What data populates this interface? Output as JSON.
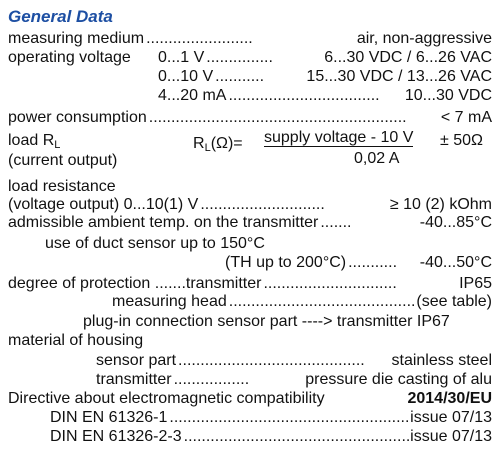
{
  "title": "General Data",
  "rows": [
    {
      "label": "measuring medium",
      "leader": "........................",
      "value": "air, non-aggressive"
    },
    {
      "label": "operating voltage",
      "items": [
        {
          "label": "0...1 V",
          "leader": "...............",
          "value": "6...30 VDC / 6...26 VAC"
        },
        {
          "label": "0...10 V",
          "leader": "...........",
          "value": "15...30 VDC / 13...26 VAC"
        },
        {
          "label": "4...20 mA",
          "leader": "..................................",
          "value": "10...30 VDC"
        }
      ]
    },
    {
      "label": "power consumption",
      "leader": "..........................................................",
      "value": "< 7 mA"
    },
    {
      "label": "load R",
      "label_sub": "L",
      "note": "(current output)",
      "formula": {
        "lhs": "R",
        "lhs_sub": "L",
        "lhs_rest": "(Ω)=",
        "numerator": "supply voltage - 10 V",
        "denominator": "0,02 A",
        "tolerance": "± 50Ω"
      }
    },
    {
      "label": "load resistance"
    },
    {
      "label": "(voltage output) 0...10(1) V",
      "leader": "............................",
      "value": "≥ 10 (2) kOhm"
    },
    {
      "label": "admissible ambient temp. on the transmitter",
      "leader": ".......",
      "value": "-40...85°C"
    },
    {
      "label": "use of duct sensor up to 150°C"
    },
    {
      "label": "(TH up to 200°C)",
      "leader": "...........",
      "value": "-40...50°C"
    },
    {
      "label": "degree of protection .......transmitter",
      "leader": "..............................",
      "value": "IP65"
    },
    {
      "label": "measuring head",
      "leader": "..........................................",
      "value": "(see table)"
    },
    {
      "label": "plug-in connection sensor part ----> transmitter IP67"
    },
    {
      "label": "material of housing"
    },
    {
      "label": "sensor part",
      "leader": "..........................................",
      "value": "stainless steel"
    },
    {
      "label": "transmitter",
      "leader": ".................",
      "value": "pressure die casting of alu"
    },
    {
      "label": "Directive about electromagnetic compatibility",
      "value": "2014/30/EU"
    },
    {
      "label": "DIN EN 61326-1",
      "leader": "......................................................",
      "value": "issue 07/13"
    },
    {
      "label": "DIN EN 61326-2-3",
      "leader": "...................................................",
      "value": "issue 07/13"
    }
  ]
}
